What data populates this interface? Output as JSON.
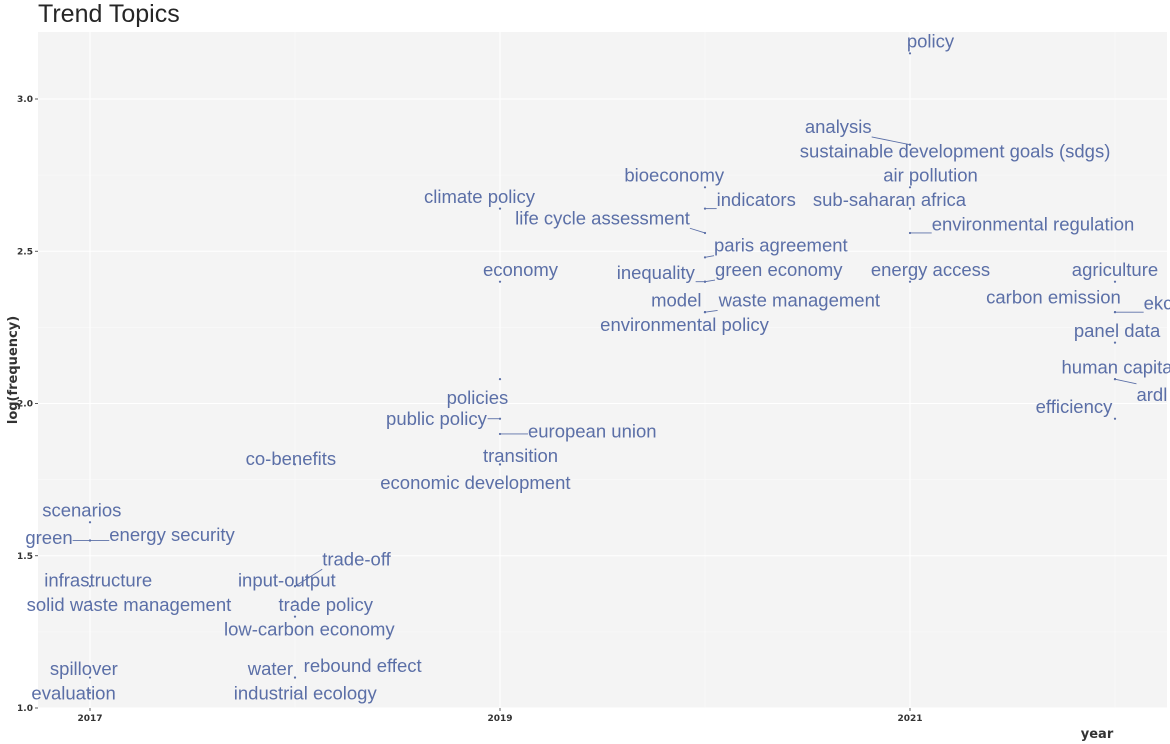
{
  "chart_data": {
    "type": "scatter",
    "title": "Trend Topics",
    "xlabel": "year",
    "ylabel": "log(frequency)",
    "xlim": [
      2016.7,
      2022.25
    ],
    "ylim": [
      1.0,
      3.24
    ],
    "x_ticks": [
      {
        "value": 2017,
        "label": "2017"
      },
      {
        "value": 2019,
        "label": "2019"
      },
      {
        "value": 2021,
        "label": "2021"
      }
    ],
    "y_ticks": [
      {
        "value": 1.0,
        "label": "1.0"
      },
      {
        "value": 1.5,
        "label": "1.5"
      },
      {
        "value": 2.0,
        "label": "2.0"
      },
      {
        "value": 2.5,
        "label": "2.5"
      },
      {
        "value": 3.0,
        "label": "3.0"
      }
    ],
    "grid": true,
    "points": [
      {
        "label": "policy",
        "x": 2021,
        "y": 3.15,
        "lx": 2021.1,
        "ly": 3.19
      },
      {
        "label": "analysis",
        "x": 2021,
        "y": 2.85,
        "lx": 2020.65,
        "ly": 2.91
      },
      {
        "label": "sustainable development goals (sdgs)",
        "x": 2021,
        "y": 2.85,
        "lx": 2021.22,
        "ly": 2.83
      },
      {
        "label": "air pollution",
        "x": 2021,
        "y": 2.71,
        "lx": 2021.1,
        "ly": 2.75
      },
      {
        "label": "bioeconomy",
        "x": 2020,
        "y": 2.71,
        "lx": 2019.85,
        "ly": 2.75
      },
      {
        "label": "indicators",
        "x": 2020,
        "y": 2.64,
        "lx": 2020.25,
        "ly": 2.67
      },
      {
        "label": "sub-saharan africa",
        "x": 2021,
        "y": 2.64,
        "lx": 2020.9,
        "ly": 2.67
      },
      {
        "label": "climate policy",
        "x": 2019,
        "y": 2.64,
        "lx": 2018.9,
        "ly": 2.68
      },
      {
        "label": "life cycle assessment",
        "x": 2020,
        "y": 2.56,
        "lx": 2019.5,
        "ly": 2.61
      },
      {
        "label": "environmental regulation",
        "x": 2021,
        "y": 2.56,
        "lx": 2021.6,
        "ly": 2.59
      },
      {
        "label": "paris agreement",
        "x": 2020,
        "y": 2.48,
        "lx": 2020.37,
        "ly": 2.52
      },
      {
        "label": "economy",
        "x": 2019,
        "y": 2.4,
        "lx": 2019.1,
        "ly": 2.44
      },
      {
        "label": "inequality",
        "x": 2020,
        "y": 2.4,
        "lx": 2019.76,
        "ly": 2.43
      },
      {
        "label": "green economy",
        "x": 2020,
        "y": 2.4,
        "lx": 2020.36,
        "ly": 2.44
      },
      {
        "label": "energy access",
        "x": 2021,
        "y": 2.4,
        "lx": 2021.1,
        "ly": 2.44
      },
      {
        "label": "agriculture",
        "x": 2022,
        "y": 2.4,
        "lx": 2022.0,
        "ly": 2.44
      },
      {
        "label": "model",
        "x": 2020,
        "y": 2.3,
        "lx": 2019.86,
        "ly": 2.34
      },
      {
        "label": "waste management",
        "x": 2020,
        "y": 2.3,
        "lx": 2020.46,
        "ly": 2.34
      },
      {
        "label": "carbon emission",
        "x": 2022,
        "y": 2.3,
        "lx": 2021.7,
        "ly": 2.35
      },
      {
        "label": "ekc",
        "x": 2022,
        "y": 2.3,
        "lx": 2022.21,
        "ly": 2.33
      },
      {
        "label": "environmental policy",
        "x": 2020,
        "y": 2.3,
        "lx": 2019.9,
        "ly": 2.26
      },
      {
        "label": "panel data",
        "x": 2022,
        "y": 2.2,
        "lx": 2022.01,
        "ly": 2.24
      },
      {
        "label": "human capital",
        "x": 2022,
        "y": 2.08,
        "lx": 2022.02,
        "ly": 2.12
      },
      {
        "label": "ardl",
        "x": 2022,
        "y": 2.08,
        "lx": 2022.18,
        "ly": 2.03
      },
      {
        "label": "policies",
        "x": 2019,
        "y": 2.08,
        "lx": 2018.89,
        "ly": 2.02
      },
      {
        "label": "efficiency",
        "x": 2022,
        "y": 1.95,
        "lx": 2021.8,
        "ly": 1.99
      },
      {
        "label": "public policy",
        "x": 2019,
        "y": 1.95,
        "lx": 2018.69,
        "ly": 1.95
      },
      {
        "label": "european union",
        "x": 2019,
        "y": 1.9,
        "lx": 2019.45,
        "ly": 1.91
      },
      {
        "label": "transition",
        "x": 2019,
        "y": 1.8,
        "lx": 2019.1,
        "ly": 1.83
      },
      {
        "label": "co-benefits",
        "x": 2018,
        "y": 1.8,
        "lx": 2017.98,
        "ly": 1.82
      },
      {
        "label": "economic development",
        "x": 2019,
        "y": 1.8,
        "lx": 2018.88,
        "ly": 1.74
      },
      {
        "label": "scenarios",
        "x": 2017,
        "y": 1.61,
        "lx": 2016.96,
        "ly": 1.65
      },
      {
        "label": "energy security",
        "x": 2017,
        "y": 1.55,
        "lx": 2017.4,
        "ly": 1.57
      },
      {
        "label": "green",
        "x": 2017,
        "y": 1.55,
        "lx": 2016.8,
        "ly": 1.56
      },
      {
        "label": "trade-off",
        "x": 2018,
        "y": 1.4,
        "lx": 2018.3,
        "ly": 1.49
      },
      {
        "label": "infrastructure",
        "x": 2017,
        "y": 1.4,
        "lx": 2017.04,
        "ly": 1.42
      },
      {
        "label": "input-output",
        "x": 2018,
        "y": 1.4,
        "lx": 2017.96,
        "ly": 1.42
      },
      {
        "label": "solid waste management",
        "x": 2017,
        "y": 1.35,
        "lx": 2017.19,
        "ly": 1.34
      },
      {
        "label": "trade policy",
        "x": 2018,
        "y": 1.35,
        "lx": 2018.15,
        "ly": 1.34
      },
      {
        "label": "low-carbon economy",
        "x": 2018,
        "y": 1.3,
        "lx": 2018.07,
        "ly": 1.26
      },
      {
        "label": "spillover",
        "x": 2017,
        "y": 1.1,
        "lx": 2016.97,
        "ly": 1.13
      },
      {
        "label": "water",
        "x": 2018,
        "y": 1.1,
        "lx": 2017.88,
        "ly": 1.13
      },
      {
        "label": "rebound effect",
        "x": 2018,
        "y": 1.1,
        "lx": 2018.33,
        "ly": 1.14
      },
      {
        "label": "evaluation",
        "x": 2017,
        "y": 1.05,
        "lx": 2016.92,
        "ly": 1.05
      },
      {
        "label": "industrial ecology",
        "x": 2018,
        "y": 1.05,
        "lx": 2018.05,
        "ly": 1.05
      }
    ]
  }
}
